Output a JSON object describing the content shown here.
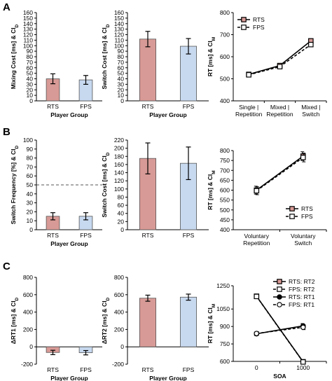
{
  "colors": {
    "rts": "#d89a96",
    "fps": "#c7d9ef",
    "line": "#000000",
    "dashed": "#555555"
  },
  "series_names": {
    "rts": "RTS",
    "fps": "FPS",
    "rts_rt2": "RTS: RT2",
    "fps_rt2": "FPS: RT2",
    "rts_rt1": "RTS: RT1",
    "fps_rt1": "FPS: RT1"
  },
  "panel_letters": [
    "A",
    "B",
    "C"
  ],
  "chart_data": [
    {
      "id": "A1",
      "type": "bar",
      "categories": [
        "RTS",
        "FPS"
      ],
      "values": [
        40,
        38
      ],
      "errors": [
        9,
        8
      ],
      "ylim": [
        0,
        160
      ],
      "yticks": [
        0,
        10,
        20,
        30,
        40,
        50,
        60,
        70,
        80,
        90,
        100,
        110,
        120,
        130,
        140,
        150,
        160
      ],
      "xlabel": "Player Group",
      "ylabel": "Mixing Cost [ms] & CI_D"
    },
    {
      "id": "A2",
      "type": "bar",
      "categories": [
        "RTS",
        "FPS"
      ],
      "values": [
        112,
        99
      ],
      "errors": [
        14,
        14
      ],
      "ylim": [
        0,
        160
      ],
      "yticks": [
        0,
        10,
        20,
        30,
        40,
        50,
        60,
        70,
        80,
        90,
        100,
        110,
        120,
        130,
        140,
        150,
        160
      ],
      "xlabel": "Player Group",
      "ylabel": "Switch Cost [ms] & CI_D"
    },
    {
      "id": "A3",
      "type": "line",
      "categories": [
        "Single | Repetition",
        "Mixed | Repetition",
        "Mixed | Switch"
      ],
      "series": [
        {
          "name": "RTS",
          "values": [
            520,
            560,
            672
          ],
          "errors": [
            8,
            8,
            10
          ]
        },
        {
          "name": "FPS",
          "values": [
            518,
            555,
            655
          ],
          "errors": [
            8,
            8,
            10
          ]
        }
      ],
      "ylim": [
        400,
        800
      ],
      "yticks": [
        400,
        500,
        600,
        700,
        800
      ],
      "ylabel": "RT [ms] & CI_M",
      "legend": "top-left"
    },
    {
      "id": "B1",
      "type": "bar",
      "categories": [
        "RTS",
        "FPS"
      ],
      "values": [
        15,
        15
      ],
      "errors": [
        4,
        4
      ],
      "reference_line": 50,
      "ylim": [
        0,
        100
      ],
      "yticks": [
        0,
        10,
        20,
        30,
        40,
        50,
        60,
        70,
        80,
        90,
        100
      ],
      "xlabel": "Player Group",
      "ylabel": "Switch Frequency [%] & CI_D"
    },
    {
      "id": "B2",
      "type": "bar",
      "categories": [
        "RTS",
        "FPS"
      ],
      "values": [
        175,
        163
      ],
      "errors": [
        38,
        40
      ],
      "ylim": [
        0,
        220
      ],
      "yticks": [
        0,
        20,
        40,
        60,
        80,
        100,
        120,
        140,
        160,
        180,
        200,
        220
      ],
      "xlabel": "",
      "ylabel": "Switch Cost [ms] & CI_D"
    },
    {
      "id": "B3",
      "type": "line",
      "categories": [
        "Voluntary Repetition",
        "Voluntary Switch"
      ],
      "series": [
        {
          "name": "RTS",
          "values": [
            600,
            772
          ],
          "errors": [
            20,
            22
          ]
        },
        {
          "name": "FPS",
          "values": [
            597,
            765
          ],
          "errors": [
            20,
            22
          ]
        }
      ],
      "ylim": [
        400,
        800
      ],
      "yticks": [
        400,
        450,
        500,
        550,
        600,
        650,
        700,
        750,
        800
      ],
      "ylabel": "RT [ms] & CI_M",
      "legend": "bottom-right"
    },
    {
      "id": "C1",
      "type": "bar",
      "categories": [
        "RTS",
        "FPS"
      ],
      "values": [
        -65,
        -68
      ],
      "errors": [
        25,
        25
      ],
      "ylim": [
        -200,
        800
      ],
      "yticks": [
        -200,
        0,
        200,
        400,
        600,
        800
      ],
      "xlabel": "Player Group",
      "ylabel": "ΔRT1 [ms] & CI_D"
    },
    {
      "id": "C2",
      "type": "bar",
      "categories": [
        "RTS",
        "FPS"
      ],
      "values": [
        560,
        572
      ],
      "errors": [
        35,
        35
      ],
      "ylim": [
        -200,
        800
      ],
      "yticks": [
        -200,
        0,
        200,
        400,
        600,
        800
      ],
      "xlabel": "Player Group",
      "ylabel": "ΔRT2 [ms] & CI_D"
    },
    {
      "id": "C3",
      "type": "line",
      "categories": [
        "0",
        "1000"
      ],
      "series": [
        {
          "name": "RTS: RT2",
          "values": [
            1160,
            597
          ],
          "errors": [
            15,
            15
          ]
        },
        {
          "name": "FPS: RT2",
          "values": [
            1158,
            595
          ],
          "errors": [
            15,
            15
          ]
        },
        {
          "name": "RTS: RT1",
          "values": [
            837,
            905
          ],
          "errors": [
            15,
            20
          ]
        },
        {
          "name": "FPS: RT1",
          "values": [
            840,
            893
          ],
          "errors": [
            15,
            20
          ]
        }
      ],
      "ylim": [
        600,
        1250
      ],
      "yticks": [
        600,
        750,
        900,
        1050,
        1250
      ],
      "yticklabels": [
        "600",
        "750",
        "900",
        "1050",
        "1250"
      ],
      "xlabel": "SOA",
      "ylabel": "RT [ms] & CI_M",
      "legend": "top-right"
    }
  ]
}
